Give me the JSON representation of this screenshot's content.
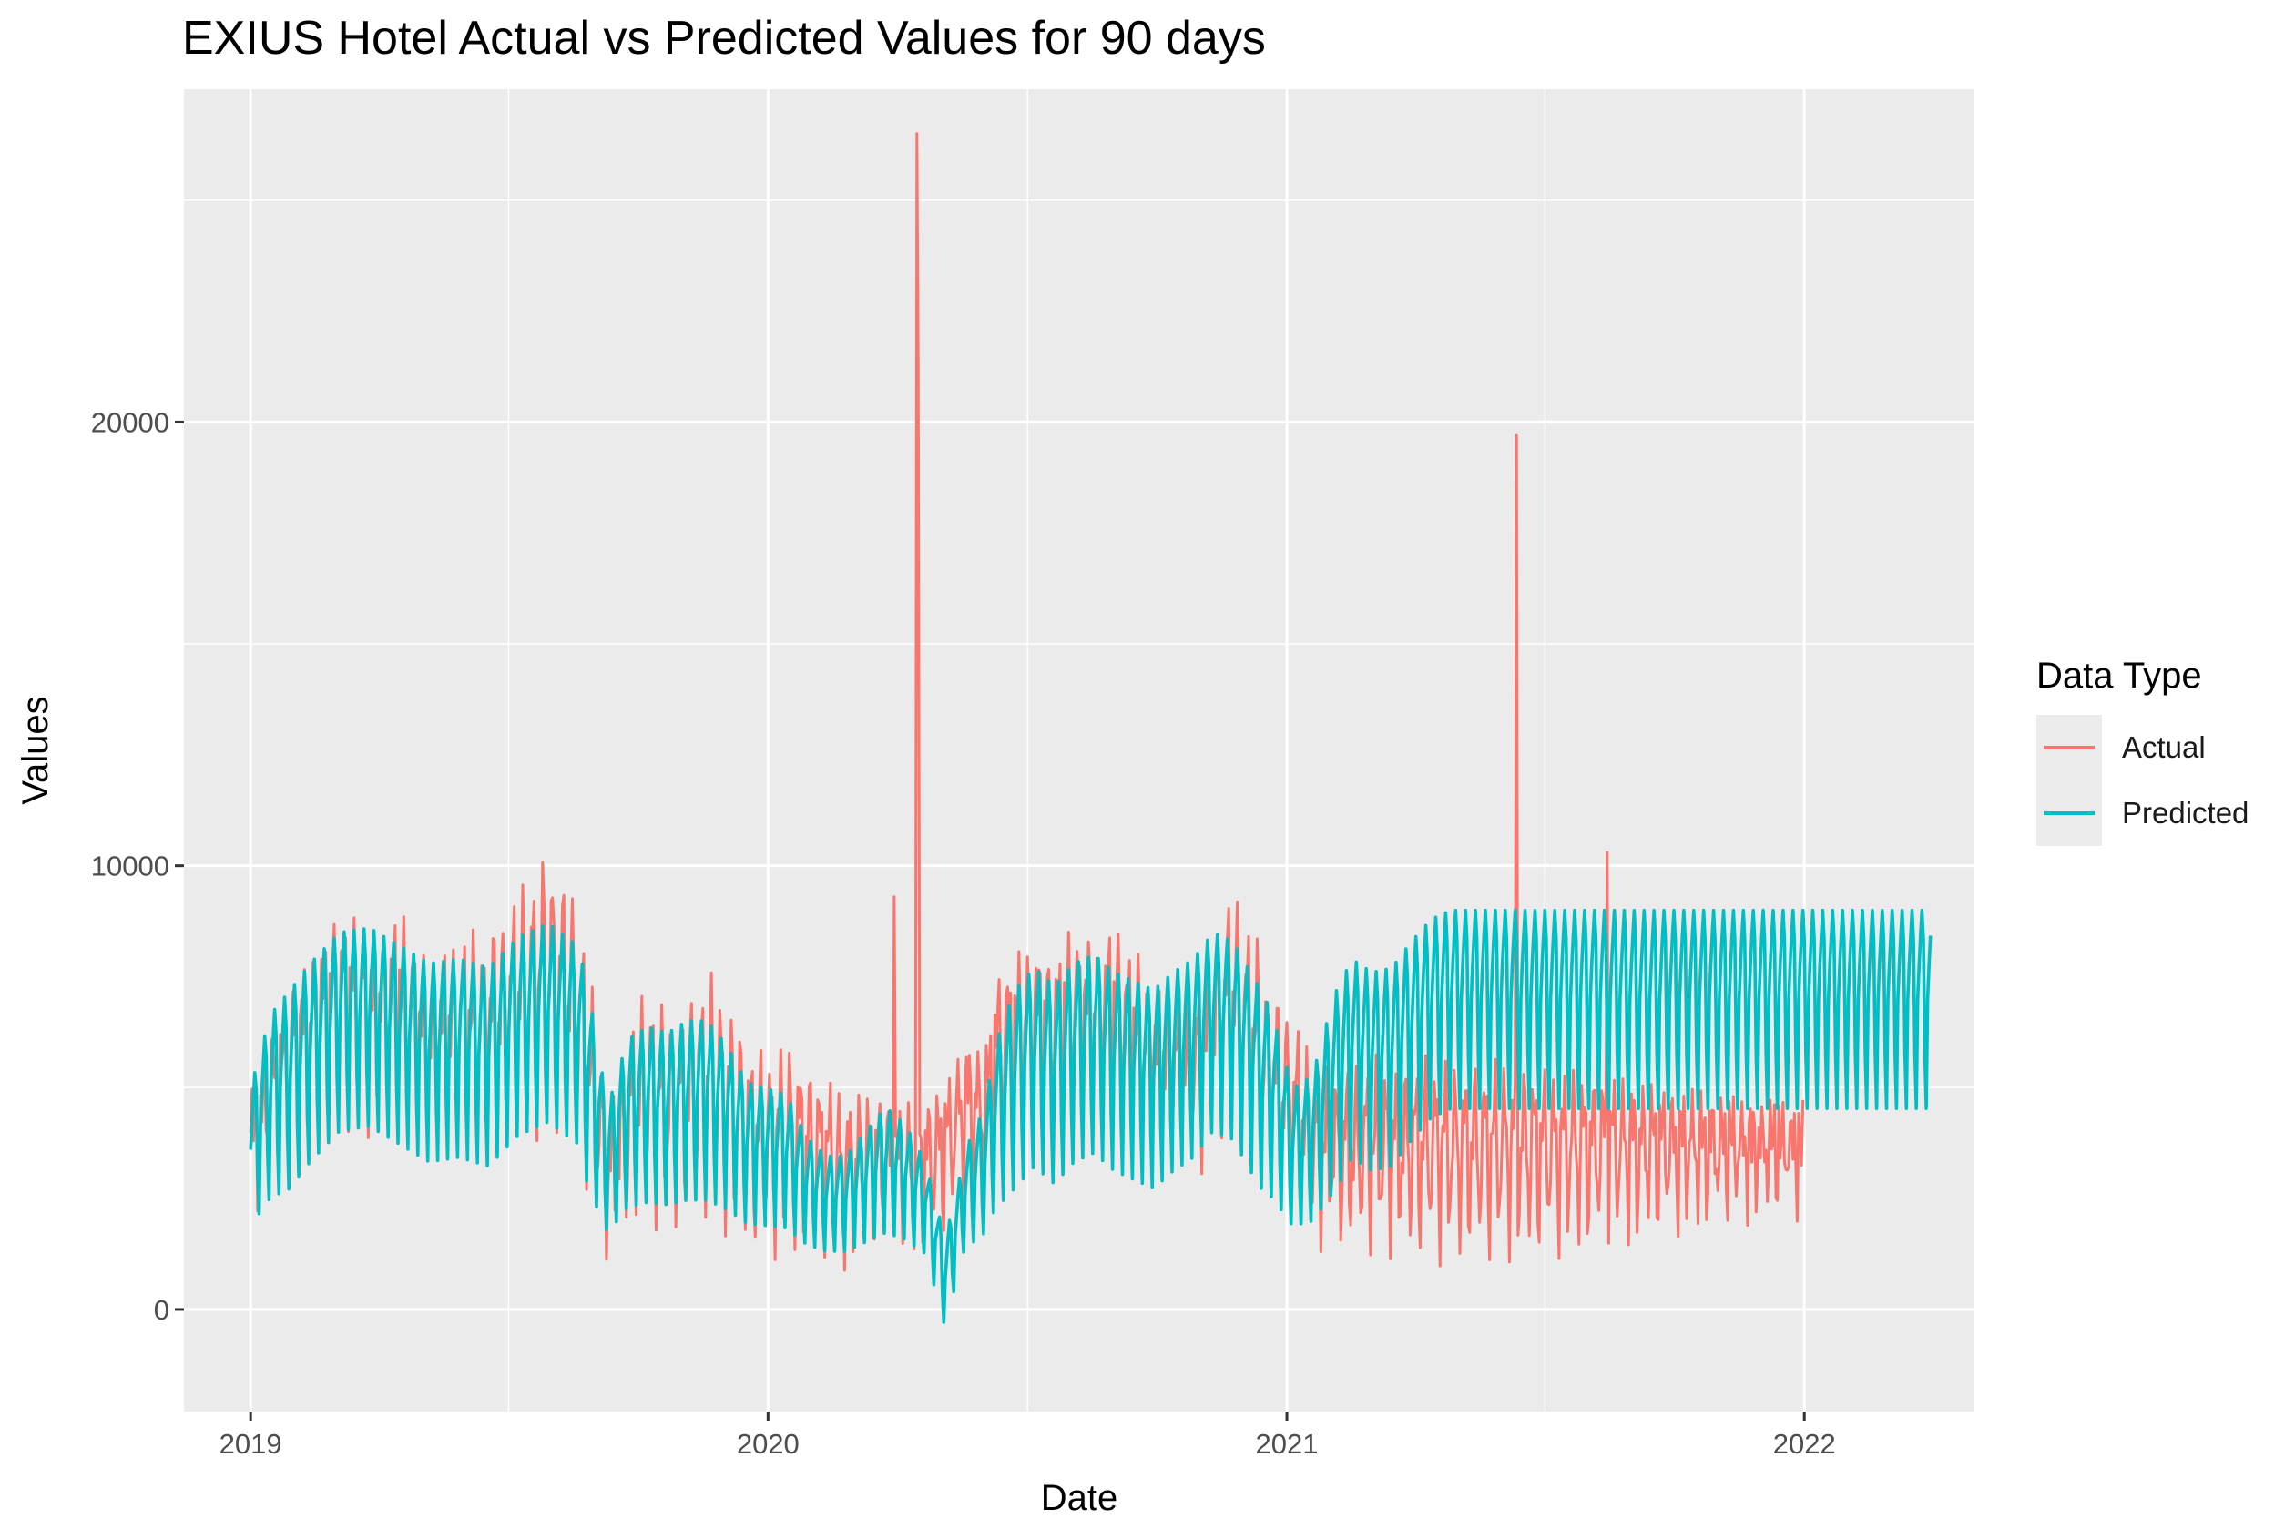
{
  "chart_data": {
    "type": "line",
    "title": "EXIUS Hotel Actual vs Predicted Values for 90 days",
    "xlabel": "Date",
    "ylabel": "Values",
    "xlim": [
      "2018-11-15",
      "2022-05-01"
    ],
    "ylim": [
      -2300,
      27500
    ],
    "x_ticks": [
      "2019",
      "2020",
      "2021",
      "2022"
    ],
    "y_ticks": [
      0,
      10000,
      20000
    ],
    "grid": true,
    "legend_title": "Data Type",
    "legend_position": "right",
    "series": [
      {
        "name": "Actual",
        "color": "#F8766D",
        "start": "2019-01-01",
        "end": "2021-12-31",
        "baseline": [
          [
            0,
            3500
          ],
          [
            2,
            4500
          ],
          [
            4,
            5500
          ],
          [
            6,
            6000
          ],
          [
            9,
            6800
          ],
          [
            12,
            6400
          ],
          [
            15,
            6700
          ],
          [
            18,
            5800
          ],
          [
            21,
            6100
          ],
          [
            24,
            6200
          ],
          [
            27,
            6700
          ],
          [
            30,
            7300
          ],
          [
            33,
            6400
          ],
          [
            36,
            3000
          ],
          [
            38,
            4000
          ],
          [
            40,
            4800
          ],
          [
            42,
            4300
          ],
          [
            44,
            4500
          ],
          [
            46,
            5000
          ],
          [
            48,
            4500
          ],
          [
            50,
            3900
          ],
          [
            52,
            3600
          ],
          [
            54,
            3800
          ],
          [
            56,
            3500
          ],
          [
            58,
            3300
          ],
          [
            60,
            3000
          ],
          [
            62,
            3200
          ],
          [
            64,
            3100
          ],
          [
            66,
            3000
          ],
          [
            68,
            3200
          ],
          [
            70,
            3500
          ],
          [
            72,
            4400
          ],
          [
            74,
            4200
          ],
          [
            75,
            5500
          ],
          [
            77,
            6000
          ],
          [
            79,
            6200
          ],
          [
            81,
            6000
          ],
          [
            83,
            6500
          ],
          [
            85,
            6300
          ],
          [
            87,
            6500
          ],
          [
            89,
            6000
          ],
          [
            91,
            5500
          ],
          [
            93,
            5300
          ],
          [
            95,
            5200
          ],
          [
            97,
            6000
          ],
          [
            99,
            6800
          ],
          [
            101,
            6000
          ],
          [
            103,
            5000
          ],
          [
            105,
            4500
          ],
          [
            107,
            3500
          ]
        ],
        "spikes": [
          {
            "date": "2020-03-30",
            "value": 9300
          },
          {
            "date": "2020-04-15",
            "value": 26500
          },
          {
            "date": "2020-04-16",
            "value": 21000
          },
          {
            "date": "2021-06-12",
            "value": 19700
          },
          {
            "date": "2021-08-15",
            "value": 10300
          }
        ]
      },
      {
        "name": "Predicted",
        "color": "#00BFC4",
        "start": "2019-01-01",
        "end": "2022-03-31",
        "baseline": [
          [
            0,
            3600
          ],
          [
            2,
            4800
          ],
          [
            4,
            5200
          ],
          [
            6,
            5800
          ],
          [
            9,
            6500
          ],
          [
            12,
            6600
          ],
          [
            15,
            6200
          ],
          [
            18,
            5800
          ],
          [
            21,
            5900
          ],
          [
            24,
            5700
          ],
          [
            27,
            6400
          ],
          [
            30,
            6700
          ],
          [
            33,
            6200
          ],
          [
            36,
            3300
          ],
          [
            38,
            4400
          ],
          [
            40,
            4600
          ],
          [
            42,
            4500
          ],
          [
            44,
            4700
          ],
          [
            46,
            4700
          ],
          [
            48,
            4300
          ],
          [
            50,
            3700
          ],
          [
            52,
            3600
          ],
          [
            54,
            3500
          ],
          [
            56,
            2800
          ],
          [
            58,
            2500
          ],
          [
            60,
            2500
          ],
          [
            62,
            2900
          ],
          [
            64,
            3300
          ],
          [
            66,
            3000
          ],
          [
            68,
            2400
          ],
          [
            70,
            700
          ],
          [
            72,
            2600
          ],
          [
            74,
            3300
          ],
          [
            75,
            4300
          ],
          [
            77,
            5200
          ],
          [
            79,
            5700
          ],
          [
            81,
            5300
          ],
          [
            83,
            5800
          ],
          [
            85,
            6000
          ],
          [
            87,
            5600
          ],
          [
            89,
            5400
          ],
          [
            91,
            5200
          ],
          [
            93,
            5600
          ],
          [
            95,
            5900
          ],
          [
            97,
            6500
          ],
          [
            99,
            6300
          ],
          [
            101,
            5500
          ],
          [
            103,
            4800
          ],
          [
            105,
            3600
          ],
          [
            107,
            3800
          ],
          [
            109,
            5000
          ],
          [
            111,
            5900
          ],
          [
            113,
            5600
          ],
          [
            115,
            5700
          ],
          [
            117,
            6300
          ],
          [
            119,
            6800
          ],
          [
            121,
            7000
          ]
        ]
      }
    ]
  }
}
